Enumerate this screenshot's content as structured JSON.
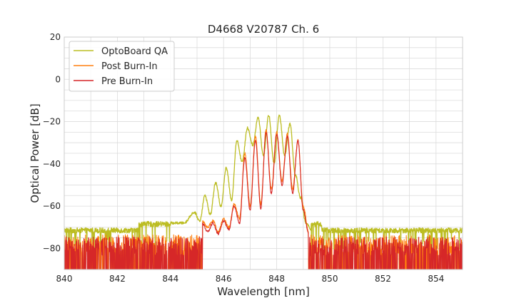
{
  "chart_data": {
    "type": "line",
    "title": "D4668 V20787 Ch. 6",
    "xlabel": "Wavelength [nm]",
    "ylabel": "Optical Power [dB]",
    "xlim": [
      840,
      855
    ],
    "ylim": [
      -90,
      20
    ],
    "xticks": [
      840,
      842,
      844,
      846,
      848,
      850,
      852,
      854
    ],
    "yticks": [
      20,
      0,
      -20,
      -40,
      -60,
      -80
    ],
    "ytick_labels": [
      "20",
      "0",
      "−20",
      "−40",
      "−60",
      "−80"
    ],
    "grid": true,
    "legend_position": "top-left",
    "noise_floor": -90,
    "series": [
      {
        "name": "OptoBoard QA",
        "color": "#bcbd22",
        "baseline": -71.5,
        "noise_amplitude": 2.5,
        "spectrum": {
          "x": [
            844.0,
            844.5,
            844.9,
            845.1,
            845.3,
            845.5,
            845.7,
            845.9,
            846.1,
            846.3,
            846.5,
            846.7,
            846.9,
            847.1,
            847.3,
            847.5,
            847.7,
            847.9,
            848.1,
            848.3,
            848.5,
            848.7,
            848.9,
            849.1,
            849.3
          ],
          "y": [
            -68,
            -68,
            -63,
            -67,
            -55,
            -64,
            -49,
            -60,
            -42,
            -57,
            -29,
            -39,
            -23,
            -31,
            -18,
            -36,
            -17,
            -40,
            -17,
            -36,
            -21,
            -45,
            -56,
            -68,
            -71
          ]
        }
      },
      {
        "name": "Post Burn-In",
        "color": "#ff7f0e",
        "baseline": -78,
        "noise_amplitude": 5,
        "spectrum": {
          "x": [
            845.2,
            845.4,
            845.6,
            845.8,
            846.0,
            846.2,
            846.4,
            846.6,
            846.8,
            847.0,
            847.2,
            847.4,
            847.6,
            847.8,
            848.0,
            848.2,
            848.4,
            848.6,
            848.8,
            849.0,
            849.2
          ],
          "y": [
            -67,
            -70,
            -67,
            -72,
            -66,
            -70,
            -59,
            -66,
            -35,
            -60,
            -27,
            -59,
            -24,
            -52,
            -25,
            -48,
            -26,
            -52,
            -29,
            -60,
            -72
          ]
        }
      },
      {
        "name": "Pre Burn-In",
        "color": "#d62728",
        "baseline": -79,
        "noise_amplitude": 5,
        "spectrum": {
          "x": [
            845.2,
            845.4,
            845.6,
            845.8,
            846.0,
            846.2,
            846.4,
            846.6,
            846.8,
            847.0,
            847.2,
            847.4,
            847.6,
            847.8,
            848.0,
            848.2,
            848.4,
            848.6,
            848.8,
            849.0,
            849.2
          ],
          "y": [
            -68,
            -72,
            -68,
            -73,
            -67,
            -71,
            -60,
            -68,
            -37,
            -62,
            -29,
            -61,
            -25,
            -54,
            -26,
            -50,
            -27,
            -54,
            -29,
            -62,
            -73
          ]
        }
      }
    ]
  }
}
